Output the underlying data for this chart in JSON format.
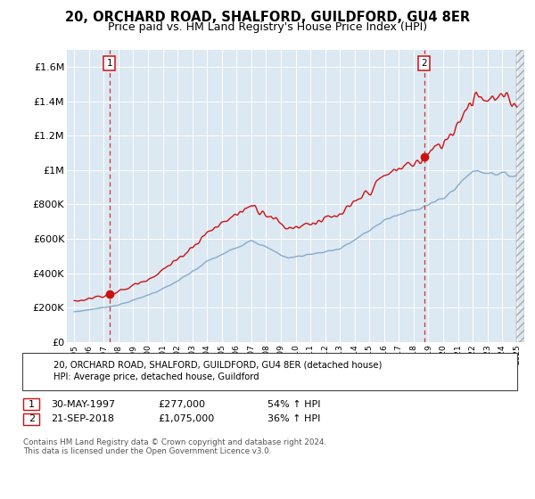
{
  "title": "20, ORCHARD ROAD, SHALFORD, GUILDFORD, GU4 8ER",
  "subtitle": "Price paid vs. HM Land Registry's House Price Index (HPI)",
  "legend_line1": "20, ORCHARD ROAD, SHALFORD, GUILDFORD, GU4 8ER (detached house)",
  "legend_line2": "HPI: Average price, detached house, Guildford",
  "sale1_date": "30-MAY-1997",
  "sale1_price": "£277,000",
  "sale1_pct": "54% ↑ HPI",
  "sale1_year": 1997.38,
  "sale1_value": 277000,
  "sale2_date": "21-SEP-2018",
  "sale2_price": "£1,075,000",
  "sale2_pct": "36% ↑ HPI",
  "sale2_year": 2018.72,
  "sale2_value": 1075000,
  "red_color": "#cc1111",
  "blue_color": "#88aacc",
  "plot_bg_color": "#dce8f2",
  "ylim": [
    0,
    1700000
  ],
  "xlim": [
    1994.5,
    2025.5
  ],
  "yticks": [
    0,
    200000,
    400000,
    600000,
    800000,
    1000000,
    1200000,
    1400000,
    1600000
  ],
  "ytick_labels": [
    "£0",
    "£200K",
    "£400K",
    "£600K",
    "£800K",
    "£1M",
    "£1.2M",
    "£1.4M",
    "£1.6M"
  ],
  "footer": "Contains HM Land Registry data © Crown copyright and database right 2024.\nThis data is licensed under the Open Government Licence v3.0."
}
